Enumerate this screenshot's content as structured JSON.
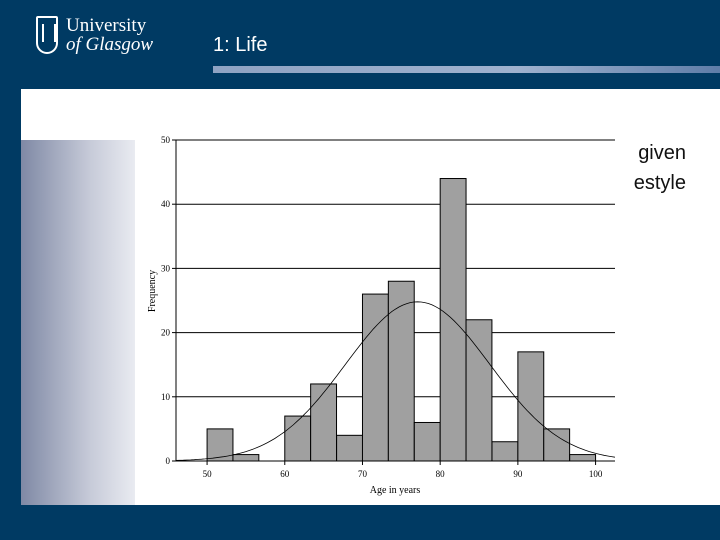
{
  "header": {
    "logo_line1": "University",
    "logo_line2": "of Glasgow",
    "title": "1: Life"
  },
  "background_text": {
    "line1": "given",
    "line2": "estyle"
  },
  "colors": {
    "navy": "#003a63",
    "bar_fill": "#a0a0a0",
    "rule": "#9fb2cf"
  },
  "chart_data": {
    "type": "bar",
    "subtype": "histogram",
    "title": "",
    "xlabel": "Age in years",
    "ylabel": "Frequency",
    "bin_width": 3.33,
    "bins": [
      {
        "start": 50.0,
        "count": 5
      },
      {
        "start": 53.33,
        "count": 1
      },
      {
        "start": 56.67,
        "count": 0
      },
      {
        "start": 60.0,
        "count": 7
      },
      {
        "start": 63.33,
        "count": 12
      },
      {
        "start": 66.67,
        "count": 4
      },
      {
        "start": 70.0,
        "count": 26
      },
      {
        "start": 73.33,
        "count": 28
      },
      {
        "start": 76.67,
        "count": 6
      },
      {
        "start": 80.0,
        "count": 44
      },
      {
        "start": 83.33,
        "count": 22
      },
      {
        "start": 86.67,
        "count": 3
      },
      {
        "start": 90.0,
        "count": 17
      },
      {
        "start": 93.33,
        "count": 5
      },
      {
        "start": 96.67,
        "count": 1
      }
    ],
    "xlim": [
      46,
      102.5
    ],
    "ylim": [
      0,
      50
    ],
    "x_ticks": [
      50,
      60,
      70,
      80,
      90,
      100
    ],
    "y_ticks": [
      0,
      10,
      20,
      30,
      40,
      50
    ],
    "normal_curve": {
      "mean": 77.1,
      "sd": 9.3,
      "peak": 24.8
    },
    "grid": "horizontal"
  }
}
